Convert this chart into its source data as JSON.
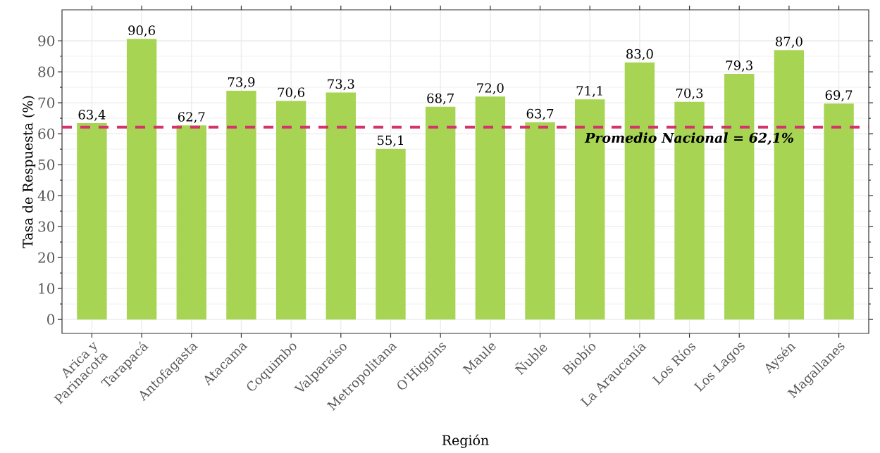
{
  "chart_data": {
    "type": "bar",
    "xlabel": "Región",
    "ylabel": "Tasa de Respuesta (%)",
    "categories": [
      "Arica y Parinacota",
      "Tarapacá",
      "Antofagasta",
      "Atacama",
      "Coquimbo",
      "Valparaíso",
      "Metropolitana",
      "O'Higgins",
      "Maule",
      "Ñuble",
      "Biobío",
      "La Araucanía",
      "Los Ríos",
      "Los Lagos",
      "Aysén",
      "Magallanes"
    ],
    "values": [
      63.4,
      90.6,
      62.7,
      73.9,
      70.6,
      73.3,
      55.1,
      68.7,
      72.0,
      63.7,
      71.1,
      83.0,
      70.3,
      79.3,
      87.0,
      69.7
    ],
    "value_labels": [
      "63,4",
      "90,6",
      "62,7",
      "73,9",
      "70,6",
      "73,3",
      "55,1",
      "68,7",
      "72,0",
      "63,7",
      "71,1",
      "83,0",
      "70,3",
      "79,3",
      "87,0",
      "69,7"
    ],
    "color": "#a8d454",
    "ylim": [
      -4.5,
      100
    ],
    "yticks": [
      0,
      10,
      20,
      30,
      40,
      50,
      60,
      70,
      80,
      90
    ],
    "grid": true,
    "ref_lines": [
      {
        "axis": "y",
        "value": 62.1,
        "label": "Promedio Nacional = 62,1%",
        "color": "#d6336c",
        "line_style": "dashed"
      }
    ]
  }
}
